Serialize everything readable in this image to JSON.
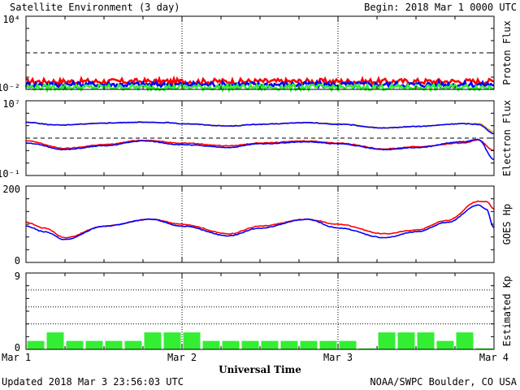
{
  "header": {
    "title": "Satellite Environment (3 day)",
    "begin": "Begin:  2018 Mar 1 0000 UTC"
  },
  "footer": {
    "updated": "Updated 2018 Mar  3 23:56:03 UTC",
    "credit": "NOAA/SWPC Boulder, CO USA",
    "xlabel": "Universal Time"
  },
  "x_ticks": [
    "Mar 1",
    "Mar 2",
    "Mar 3",
    "Mar 4"
  ],
  "colors": {
    "red": "#ff0000",
    "blue": "#0000ff",
    "green": "#33ee33",
    "orange": "#ffa500",
    "black": "#000000"
  },
  "chart_data": [
    {
      "type": "line",
      "ylabel": "Proton Flux",
      "ytick_labels": [
        "10⁴",
        "10⁻²"
      ],
      "y_log": true,
      "ylim": [
        0.01,
        10000
      ],
      "x_unit": "days since 2018 Mar 1 0000 UTC",
      "xlim": [
        0,
        3
      ],
      "threshold": 10,
      "series": [
        {
          "color": "red",
          "level": 0.045
        },
        {
          "color": "blue",
          "level": 0.025
        },
        {
          "color": "green",
          "level": 0.015
        }
      ]
    },
    {
      "type": "line",
      "ylabel": "Electron Flux",
      "ytick_labels": [
        "10⁷",
        "10⁻¹"
      ],
      "y_log": true,
      "ylim": [
        0.1,
        10000000
      ],
      "threshold": 1000,
      "series": [
        {
          "color": "orange",
          "x": [
            0,
            0.2,
            0.5,
            0.7,
            0.9,
            1.0,
            1.3,
            1.5,
            1.8,
            2.0,
            2.3,
            2.5,
            2.8,
            2.9,
            3.0
          ],
          "y": [
            50000,
            25000,
            40000,
            50000,
            45000,
            35000,
            20000,
            30000,
            45000,
            35000,
            12000,
            18000,
            35000,
            35000,
            5000
          ]
        },
        {
          "color": "blue",
          "x": [
            0,
            0.2,
            0.5,
            0.7,
            0.9,
            1.0,
            1.3,
            1.5,
            1.8,
            2.0,
            2.3,
            2.5,
            2.8,
            2.9,
            3.0
          ],
          "y": [
            50000,
            25000,
            40000,
            50000,
            45000,
            35000,
            20000,
            30000,
            45000,
            30000,
            12000,
            18000,
            35000,
            30000,
            3000
          ]
        },
        {
          "color": "red",
          "x": [
            0,
            0.25,
            0.5,
            0.75,
            1.0,
            1.3,
            1.5,
            1.8,
            2.0,
            2.3,
            2.5,
            2.8,
            2.9,
            3.0
          ],
          "y": [
            500,
            80,
            200,
            600,
            300,
            150,
            300,
            500,
            300,
            70,
            120,
            300,
            600,
            50
          ]
        },
        {
          "color": "blue",
          "x": [
            0,
            0.25,
            0.5,
            0.75,
            1.0,
            1.3,
            1.5,
            1.8,
            2.0,
            2.3,
            2.5,
            2.8,
            2.9,
            3.0
          ],
          "y": [
            300,
            60,
            150,
            500,
            200,
            100,
            250,
            400,
            250,
            60,
            100,
            400,
            700,
            5
          ]
        }
      ]
    },
    {
      "type": "line",
      "ylabel": "GOES Hp",
      "ytick_labels": [
        "200",
        "0"
      ],
      "ylim": [
        0,
        200
      ],
      "series": [
        {
          "color": "red",
          "x": [
            0,
            0.12,
            0.25,
            0.5,
            0.8,
            1.0,
            1.3,
            1.5,
            1.8,
            2.0,
            2.3,
            2.5,
            2.7,
            2.9,
            2.95,
            3.0
          ],
          "y": [
            105,
            90,
            65,
            95,
            113,
            100,
            75,
            95,
            113,
            100,
            75,
            85,
            110,
            160,
            160,
            140
          ]
        },
        {
          "color": "blue",
          "x": [
            0,
            0.12,
            0.25,
            0.5,
            0.8,
            1.0,
            1.3,
            1.5,
            1.8,
            2.0,
            2.3,
            2.5,
            2.7,
            2.9,
            2.95,
            3.0
          ],
          "y": [
            95,
            80,
            60,
            95,
            113,
            95,
            70,
            90,
            113,
            90,
            65,
            80,
            105,
            150,
            140,
            90
          ]
        }
      ]
    },
    {
      "type": "bar",
      "ylabel": "Estimated Kp",
      "ytick_labels": [
        "9",
        "0"
      ],
      "ylim": [
        0,
        9
      ],
      "bar_color": "green",
      "values": [
        1,
        2,
        1,
        1,
        1,
        1,
        2,
        2,
        2,
        1,
        1,
        1,
        1,
        1,
        1,
        1,
        1,
        0,
        2,
        2,
        2,
        1,
        2,
        0
      ]
    }
  ]
}
